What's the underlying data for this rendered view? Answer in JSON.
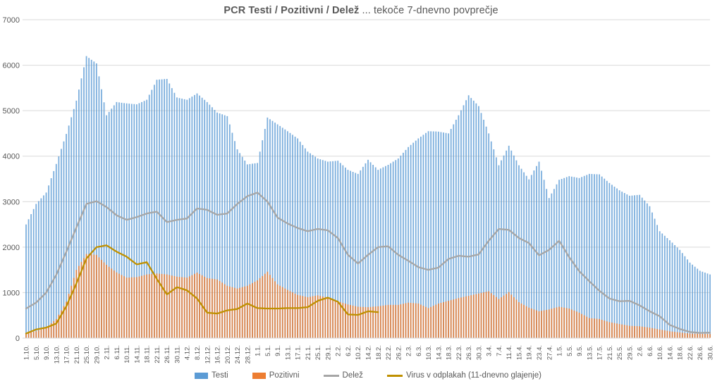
{
  "title": {
    "bold": "PCR Testi / Pozitivni / Delež",
    "rest": " ... tekoče 7-dnevno povprečje"
  },
  "colors": {
    "tests": "#5B9BD5",
    "positive": "#ED7D31",
    "share": "#A6A6A6",
    "virus": "#BF9000",
    "grid": "#D9D9D9",
    "text": "#595959"
  },
  "chart_data": {
    "type": "combo_bar_line",
    "title": "PCR Testi / Pozitivni / Delež ... tekoče 7-dnevno povprečje",
    "grid": "horizontal",
    "legend_position": "bottom",
    "ylim": [
      0,
      7000
    ],
    "y_ticks": [
      0,
      1000,
      2000,
      3000,
      4000,
      5000,
      6000,
      7000
    ],
    "total_days": 273,
    "x_tick_interval_days": 4,
    "x_tick_labels": [
      "1.10.",
      "5.10.",
      "9.10.",
      "13.10.",
      "17.10.",
      "21.10.",
      "25.10.",
      "29.10.",
      "2.11.",
      "6.11.",
      "10.11.",
      "14.11.",
      "18.11.",
      "22.11.",
      "26.11.",
      "30.11.",
      "4.12.",
      "8.12.",
      "12.12.",
      "16.12.",
      "20.12.",
      "24.12.",
      "28.12.",
      "1.1.",
      "5.1.",
      "9.1.",
      "13.1.",
      "17.1.",
      "21.1.",
      "25.1.",
      "29.1.",
      "2.2.",
      "6.2.",
      "10.2.",
      "14.2.",
      "18.2.",
      "22.2.",
      "26.2.",
      "2.3.",
      "6.3.",
      "10.3.",
      "14.3.",
      "18.3.",
      "22.3.",
      "26.3.",
      "30.3.",
      "3.4.",
      "7.4.",
      "11.4.",
      "15.4.",
      "19.4.",
      "23.4.",
      "27.4.",
      "1.5.",
      "5.5.",
      "9.5.",
      "13.5.",
      "17.5.",
      "21.5.",
      "25.5.",
      "29.5.",
      "2.6.",
      "6.6.",
      "10.6.",
      "14.6.",
      "18.6.",
      "22.6.",
      "26.6.",
      "30.6."
    ],
    "keypoint_days": [
      0,
      4,
      8,
      12,
      16,
      20,
      24,
      28,
      32,
      36,
      40,
      44,
      48,
      52,
      56,
      60,
      64,
      68,
      72,
      76,
      80,
      84,
      88,
      92,
      96,
      100,
      104,
      108,
      112,
      116,
      120,
      124,
      128,
      132,
      136,
      140,
      144,
      148,
      152,
      156,
      160,
      164,
      168,
      172,
      176,
      180,
      184,
      188,
      192,
      196,
      200,
      204,
      208,
      212,
      216,
      220,
      224,
      228,
      232,
      236,
      240,
      244,
      248,
      252,
      256,
      260,
      264,
      268,
      272
    ],
    "series": [
      {
        "name": "Testi",
        "type": "bar",
        "color": "#5B9BD5",
        "opacity": 0.8,
        "values": [
          2500,
          2950,
          3200,
          3830,
          4490,
          5220,
          6200,
          6040,
          4900,
          5190,
          5160,
          5140,
          5240,
          5680,
          5700,
          5290,
          5240,
          5380,
          5190,
          4960,
          4880,
          4150,
          3820,
          3850,
          4850,
          4700,
          4550,
          4390,
          4100,
          3950,
          3880,
          3900,
          3700,
          3610,
          3920,
          3700,
          3810,
          3950,
          4200,
          4390,
          4550,
          4540,
          4500,
          4900,
          5340,
          5100,
          4500,
          3800,
          4230,
          3800,
          3490,
          3880,
          3080,
          3480,
          3560,
          3520,
          3610,
          3600,
          3410,
          3250,
          3130,
          3150,
          2900,
          2350,
          2150,
          1940,
          1660,
          1480,
          1400
        ]
      },
      {
        "name": "Pozitivni",
        "type": "bar",
        "color": "#ED7D31",
        "opacity": 0.85,
        "values": [
          110,
          150,
          230,
          420,
          800,
          1500,
          1850,
          1830,
          1610,
          1445,
          1330,
          1340,
          1400,
          1420,
          1400,
          1350,
          1330,
          1440,
          1320,
          1290,
          1150,
          1090,
          1150,
          1270,
          1460,
          1180,
          1060,
          950,
          900,
          940,
          890,
          810,
          740,
          690,
          680,
          700,
          730,
          730,
          780,
          760,
          660,
          760,
          820,
          880,
          930,
          980,
          1030,
          860,
          1010,
          790,
          670,
          590,
          630,
          690,
          650,
          560,
          440,
          420,
          350,
          310,
          270,
          260,
          230,
          190,
          150,
          125,
          100,
          95,
          90
        ]
      },
      {
        "name": "Delež",
        "type": "line",
        "color": "#A6A6A6",
        "values": [
          650,
          780,
          1000,
          1390,
          1900,
          2430,
          2950,
          3010,
          2880,
          2700,
          2600,
          2660,
          2740,
          2780,
          2550,
          2600,
          2630,
          2850,
          2820,
          2710,
          2740,
          2950,
          3120,
          3200,
          3000,
          2650,
          2520,
          2420,
          2350,
          2400,
          2370,
          2200,
          1830,
          1640,
          1830,
          2000,
          2020,
          1830,
          1700,
          1560,
          1500,
          1550,
          1740,
          1810,
          1790,
          1840,
          2140,
          2400,
          2380,
          2200,
          2090,
          1820,
          1940,
          2140,
          1780,
          1470,
          1250,
          1040,
          870,
          810,
          820,
          720,
          590,
          480,
          290,
          200,
          135,
          115,
          120
        ]
      },
      {
        "name": "Virus v odplakah (11-dnevno glajenje)",
        "type": "line",
        "color": "#BF9000",
        "days": [
          0,
          4,
          8,
          12,
          16,
          20,
          24,
          28,
          32,
          36,
          40,
          44,
          48,
          52,
          56,
          60,
          64,
          68,
          72,
          76,
          80,
          84,
          88,
          92,
          96,
          100,
          104,
          108,
          112,
          116,
          120,
          124,
          128,
          132,
          136,
          140
        ],
        "values": [
          100,
          190,
          230,
          320,
          700,
          1200,
          1750,
          2000,
          2040,
          1900,
          1790,
          1620,
          1670,
          1300,
          960,
          1120,
          1050,
          870,
          560,
          540,
          610,
          640,
          760,
          660,
          650,
          650,
          660,
          660,
          680,
          820,
          890,
          800,
          520,
          510,
          590,
          570
        ]
      }
    ]
  }
}
